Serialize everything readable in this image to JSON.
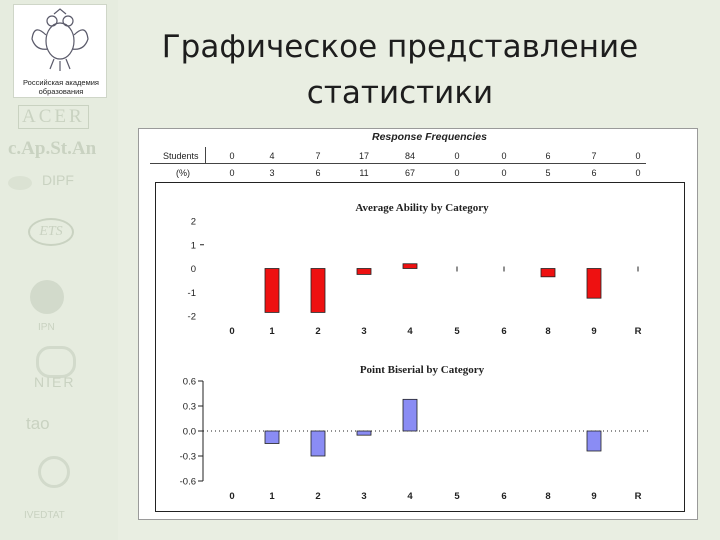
{
  "slide": {
    "title_line1": "Графическое представление",
    "title_line2": "статистики",
    "academy_line1": "Российская академия",
    "academy_line2": "образования"
  },
  "logos": [
    "ACER",
    "c.Ap.St.An",
    "DIPF",
    "ETS",
    "IPN",
    "NIER",
    "tao",
    "IVEDTAT"
  ],
  "response_frequencies": {
    "title": "Response Frequencies",
    "row_labels": [
      "Students",
      "(%)"
    ],
    "students": [
      "0",
      "4",
      "7",
      "17",
      "84",
      "0",
      "0",
      "6",
      "7",
      "0"
    ],
    "percent": [
      "0",
      "3",
      "6",
      "11",
      "67",
      "0",
      "0",
      "5",
      "6",
      "0"
    ]
  },
  "chart_data": [
    {
      "type": "bar",
      "title": "Average Ability by Category",
      "categories": [
        "0",
        "1",
        "2",
        "3",
        "4",
        "5",
        "6",
        "8",
        "9",
        "R"
      ],
      "series": [
        {
          "values": [
            0,
            -1.85,
            -1.85,
            -0.25,
            0.2,
            0,
            0,
            -0.35,
            -1.25,
            0
          ]
        }
      ],
      "y_ticks": [
        "2",
        "1",
        "0",
        "-1",
        "-2"
      ],
      "ylim": [
        -2,
        2
      ],
      "color": "#ee1111"
    },
    {
      "type": "bar",
      "title": "Point Biserial by Category",
      "categories": [
        "0",
        "1",
        "2",
        "3",
        "4",
        "5",
        "6",
        "8",
        "9",
        "R"
      ],
      "series": [
        {
          "values": [
            0,
            -0.15,
            -0.3,
            -0.05,
            0.38,
            0,
            0,
            0,
            -0.24,
            0
          ]
        }
      ],
      "y_ticks": [
        "0.6",
        "0.3",
        "0.0",
        "-0.3",
        "-0.6"
      ],
      "ylim": [
        -0.6,
        0.6
      ],
      "color": "#8a8cf4"
    }
  ]
}
